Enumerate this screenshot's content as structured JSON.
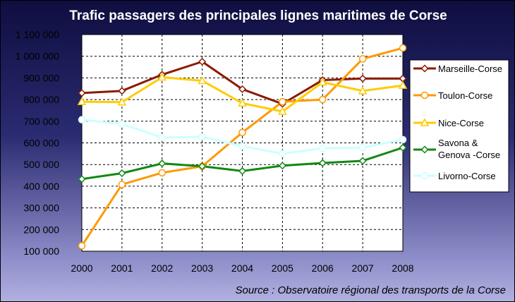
{
  "chart_data": {
    "type": "line",
    "title": "Trafic passagers des principales lignes maritimes de Corse",
    "source": "Source : Observatoire régional des transports de la Corse",
    "x": [
      "2000",
      "2001",
      "2002",
      "2003",
      "2004",
      "2005",
      "2006",
      "2007",
      "2008"
    ],
    "ylim": [
      100000,
      1100000
    ],
    "yticks": [
      {
        "value": 100000,
        "label": "100 000"
      },
      {
        "value": 200000,
        "label": "200 000"
      },
      {
        "value": 300000,
        "label": "300 000"
      },
      {
        "value": 400000,
        "label": "400 000"
      },
      {
        "value": 500000,
        "label": "500 000"
      },
      {
        "value": 600000,
        "label": "600 000"
      },
      {
        "value": 700000,
        "label": "700 000"
      },
      {
        "value": 800000,
        "label": "800 000"
      },
      {
        "value": 900000,
        "label": "900 000"
      },
      {
        "value": 1000000,
        "label": "1 000 000"
      },
      {
        "value": 1100000,
        "label": "1 100 000"
      }
    ],
    "grid": true,
    "legend_position": "right",
    "series": [
      {
        "name": "Marseille-Corse",
        "color": "#8b1a00",
        "marker": "diamond",
        "values": [
          830000,
          840000,
          915000,
          975000,
          848000,
          780000,
          890000,
          897000,
          897000
        ]
      },
      {
        "name": "Toulon-Corse",
        "color": "#ff9900",
        "marker": "circle",
        "values": [
          125000,
          408000,
          462000,
          492000,
          648000,
          790000,
          800000,
          988000,
          1038000
        ]
      },
      {
        "name": "Nice-Corse",
        "color": "#ffcc00",
        "marker": "triangle",
        "values": [
          790000,
          788000,
          903000,
          887000,
          783000,
          745000,
          880000,
          840000,
          865000
        ]
      },
      {
        "name": "Savona &\nGenova -Corse",
        "color": "#118811",
        "marker": "diamond",
        "values": [
          433000,
          460000,
          505000,
          492000,
          470000,
          495000,
          507000,
          517000,
          578000
        ]
      },
      {
        "name": "Livorno-Corse",
        "color": "#ccffff",
        "marker": "circle",
        "values": [
          707000,
          687000,
          625000,
          628000,
          585000,
          550000,
          575000,
          578000,
          615000
        ]
      }
    ]
  }
}
